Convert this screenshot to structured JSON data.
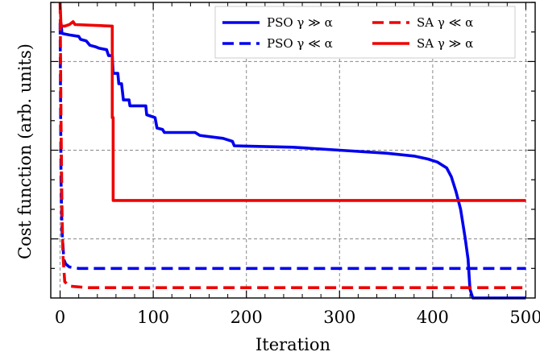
{
  "chart_data": {
    "type": "line",
    "xlabel": "Iteration",
    "ylabel": "Cost function (arb. units)",
    "xlim": [
      -10,
      510
    ],
    "ylim": [
      0,
      10
    ],
    "x_ticks": [
      0,
      100,
      200,
      300,
      400,
      500
    ],
    "y_ticks": [
      1,
      2,
      3,
      4,
      5,
      6,
      7,
      8,
      9,
      10
    ],
    "y_tick_labels_shown": false,
    "grid": true,
    "legend_placement": "top-right",
    "series": [
      {
        "name": "PSO γ ≫ α",
        "color": "#0000ee",
        "linestyle": "solid",
        "points": [
          [
            0,
            9.1
          ],
          [
            1,
            9.3
          ],
          [
            2,
            8.95
          ],
          [
            10,
            8.9
          ],
          [
            20,
            8.85
          ],
          [
            22,
            8.75
          ],
          [
            28,
            8.7
          ],
          [
            32,
            8.55
          ],
          [
            38,
            8.5
          ],
          [
            42,
            8.45
          ],
          [
            50,
            8.4
          ],
          [
            52,
            8.2
          ],
          [
            56,
            8.2
          ],
          [
            57,
            7.6
          ],
          [
            62,
            7.6
          ],
          [
            63,
            7.25
          ],
          [
            66,
            7.25
          ],
          [
            68,
            6.7
          ],
          [
            74,
            6.7
          ],
          [
            75,
            6.5
          ],
          [
            92,
            6.5
          ],
          [
            93,
            6.2
          ],
          [
            102,
            6.1
          ],
          [
            104,
            5.75
          ],
          [
            110,
            5.7
          ],
          [
            112,
            5.6
          ],
          [
            145,
            5.6
          ],
          [
            150,
            5.5
          ],
          [
            175,
            5.4
          ],
          [
            185,
            5.3
          ],
          [
            187,
            5.15
          ],
          [
            200,
            5.14
          ],
          [
            250,
            5.1
          ],
          [
            300,
            5.0
          ],
          [
            350,
            4.9
          ],
          [
            380,
            4.8
          ],
          [
            395,
            4.7
          ],
          [
            405,
            4.6
          ],
          [
            415,
            4.4
          ],
          [
            420,
            4.1
          ],
          [
            425,
            3.6
          ],
          [
            430,
            3.0
          ],
          [
            435,
            2.0
          ],
          [
            438,
            1.3
          ],
          [
            440,
            0.3
          ],
          [
            443,
            0.0
          ],
          [
            500,
            0.0
          ]
        ]
      },
      {
        "name": "PSO γ ≪ α",
        "color": "#0000ee",
        "linestyle": "dashed",
        "points": [
          [
            0,
            9.3
          ],
          [
            1,
            4.0
          ],
          [
            2,
            2.3
          ],
          [
            4,
            1.3
          ],
          [
            6,
            1.15
          ],
          [
            10,
            1.05
          ],
          [
            20,
            1.0
          ],
          [
            500,
            1.0
          ]
        ]
      },
      {
        "name": "SA γ ≪ α",
        "color": "#ee0000",
        "linestyle": "dashed",
        "points": [
          [
            0,
            10.0
          ],
          [
            1,
            6.0
          ],
          [
            2,
            3.0
          ],
          [
            3,
            1.5
          ],
          [
            5,
            0.55
          ],
          [
            10,
            0.4
          ],
          [
            30,
            0.35
          ],
          [
            500,
            0.35
          ]
        ]
      },
      {
        "name": "SA γ ≫ α",
        "color": "#ee0000",
        "linestyle": "solid",
        "points": [
          [
            0,
            10.0
          ],
          [
            1,
            9.2
          ],
          [
            5,
            9.2
          ],
          [
            10,
            9.25
          ],
          [
            14,
            9.35
          ],
          [
            16,
            9.25
          ],
          [
            56,
            9.2
          ],
          [
            56,
            6.1
          ],
          [
            57,
            6.1
          ],
          [
            57,
            3.3
          ],
          [
            500,
            3.3
          ]
        ]
      }
    ]
  }
}
